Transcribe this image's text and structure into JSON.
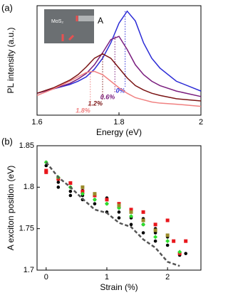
{
  "chart_data": [
    {
      "type": "line",
      "panel_label": "(a)",
      "annotation": "A",
      "inset_label": "MoS₂",
      "xlabel": "Energy (eV)",
      "ylabel": "PL intensity (a.u.)",
      "xlim": [
        1.6,
        2
      ],
      "xticks": [
        1.6,
        1.8,
        2
      ],
      "ylim": [
        0,
        1
      ],
      "x": [
        1.6,
        1.64,
        1.68,
        1.7,
        1.72,
        1.74,
        1.76,
        1.78,
        1.8,
        1.82,
        1.84,
        1.86,
        1.88,
        1.9,
        1.94,
        2.0
      ],
      "series": [
        {
          "name": "0%",
          "color": "#2b2bd6",
          "peak": 1.815,
          "values": [
            0.2,
            0.24,
            0.28,
            0.31,
            0.35,
            0.42,
            0.52,
            0.66,
            0.84,
            0.95,
            0.86,
            0.66,
            0.52,
            0.43,
            0.31,
            0.22
          ]
        },
        {
          "name": "0.6%",
          "color": "#7a1e7e",
          "peak": 1.79,
          "values": [
            0.2,
            0.24,
            0.29,
            0.33,
            0.38,
            0.46,
            0.57,
            0.69,
            0.72,
            0.6,
            0.46,
            0.37,
            0.31,
            0.27,
            0.22,
            0.17
          ]
        },
        {
          "name": "1.2%",
          "color": "#7a1414",
          "peak": 1.76,
          "values": [
            0.2,
            0.25,
            0.32,
            0.37,
            0.44,
            0.52,
            0.56,
            0.52,
            0.43,
            0.34,
            0.27,
            0.23,
            0.2,
            0.18,
            0.15,
            0.13
          ]
        },
        {
          "name": "1.8%",
          "color": "#f08080",
          "peak": 1.73,
          "values": [
            0.18,
            0.24,
            0.31,
            0.35,
            0.39,
            0.4,
            0.37,
            0.31,
            0.25,
            0.2,
            0.16,
            0.14,
            0.12,
            0.11,
            0.1,
            0.08
          ]
        }
      ]
    },
    {
      "type": "scatter",
      "panel_label": "(b)",
      "xlabel": "Strain (%)",
      "ylabel": "A exciton position (eV)",
      "xlim": [
        -0.15,
        2.55
      ],
      "xticks": [
        0,
        1,
        2
      ],
      "ylim": [
        1.7,
        1.85
      ],
      "yticks": [
        1.7,
        1.75,
        1.8,
        1.85
      ],
      "series": [
        {
          "color": "#000000",
          "marker": "circle",
          "x": [
            0,
            0,
            0,
            0.2,
            0.2,
            0.2,
            0.4,
            0.4,
            0.4,
            0.6,
            0.6,
            0.6,
            0.8,
            0.8,
            0.8,
            1,
            1,
            1,
            1.2,
            1.2,
            1.2,
            1.4,
            1.4,
            1.4,
            1.6,
            1.6,
            1.6,
            1.8,
            1.8,
            1.8,
            2,
            2,
            2.2,
            2.2,
            2.3
          ],
          "values": [
            1.83,
            1.826,
            1.82,
            1.81,
            1.806,
            1.8,
            1.8,
            1.795,
            1.79,
            1.796,
            1.79,
            1.785,
            1.79,
            1.785,
            1.78,
            1.787,
            1.78,
            1.77,
            1.775,
            1.77,
            1.763,
            1.77,
            1.763,
            1.755,
            1.762,
            1.755,
            1.745,
            1.75,
            1.745,
            1.735,
            1.74,
            1.73,
            1.72,
            1.718,
            1.72
          ]
        },
        {
          "color": "#e8161b",
          "marker": "square",
          "x": [
            0,
            0,
            0.2,
            0.4,
            0.6,
            0.8,
            1,
            1.2,
            1.4,
            1.6,
            1.8,
            2,
            2.1,
            2.2,
            2.3
          ],
          "values": [
            1.818,
            1.82,
            1.81,
            1.805,
            1.795,
            1.79,
            1.785,
            1.78,
            1.773,
            1.77,
            1.755,
            1.76,
            1.735,
            1.72,
            1.735
          ]
        },
        {
          "color": "#2ee02e",
          "marker": "diamond",
          "x": [
            0,
            0.2,
            0.4,
            0.6,
            0.8,
            1,
            1.2,
            1.4,
            1.6,
            1.8,
            2,
            2.2
          ],
          "values": [
            1.83,
            1.812,
            1.8,
            1.792,
            1.785,
            1.78,
            1.775,
            1.765,
            1.755,
            1.74,
            1.735,
            1.722
          ]
        },
        {
          "color": "#9a8a2a",
          "marker": "square",
          "x": [
            0.6,
            0.8,
            1.2,
            1.4,
            1.6,
            1.8,
            2.0
          ],
          "values": [
            1.8,
            1.792,
            1.778,
            1.77,
            1.76,
            1.748,
            1.742
          ]
        },
        {
          "color": "#555555",
          "marker": "none",
          "line_style": "dashed",
          "x": [
            0,
            0.2,
            0.4,
            0.6,
            0.8,
            1,
            1.2,
            1.4,
            1.6,
            1.8,
            2,
            2.2
          ],
          "values": [
            1.83,
            1.812,
            1.8,
            1.786,
            1.773,
            1.769,
            1.757,
            1.752,
            1.737,
            1.727,
            1.71,
            1.705
          ]
        }
      ]
    }
  ]
}
